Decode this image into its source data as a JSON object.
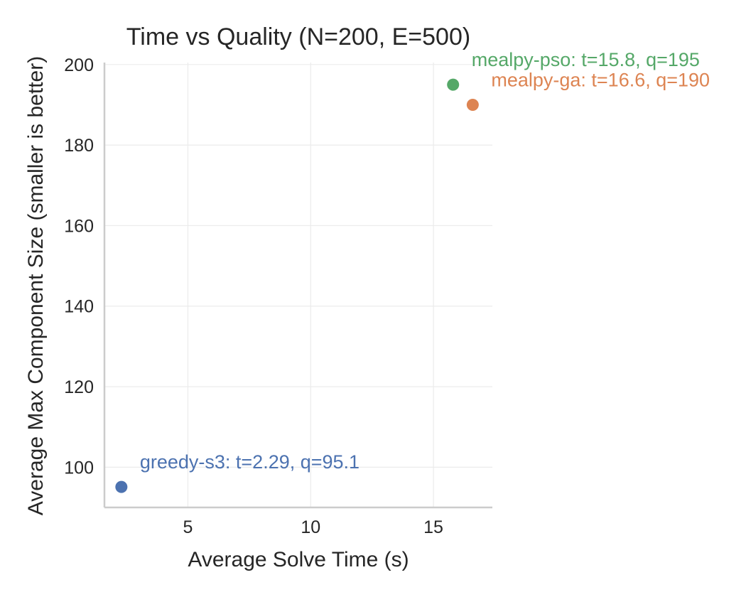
{
  "chart_data": {
    "type": "scatter",
    "title": "Time vs Quality (N=200, E=500)",
    "xlabel": "Average Solve Time (s)",
    "ylabel": "Average Max Component Size (smaller is better)",
    "xlim": [
      1.6,
      17.4
    ],
    "ylim": [
      90,
      200.5
    ],
    "xticks": [
      5,
      10,
      15
    ],
    "yticks": [
      100,
      120,
      140,
      160,
      180,
      200
    ],
    "grid": true,
    "series": [
      {
        "x": 2.29,
        "y": 95.1,
        "color": "#4c72b0",
        "annotation": "greedy-s3: t=2.29, q=95.1"
      },
      {
        "x": 15.8,
        "y": 195,
        "color": "#55a868",
        "annotation": "mealpy-pso: t=15.8, q=195"
      },
      {
        "x": 16.6,
        "y": 190,
        "color": "#dd8452",
        "annotation": "mealpy-ga: t=16.6, q=190"
      }
    ]
  }
}
